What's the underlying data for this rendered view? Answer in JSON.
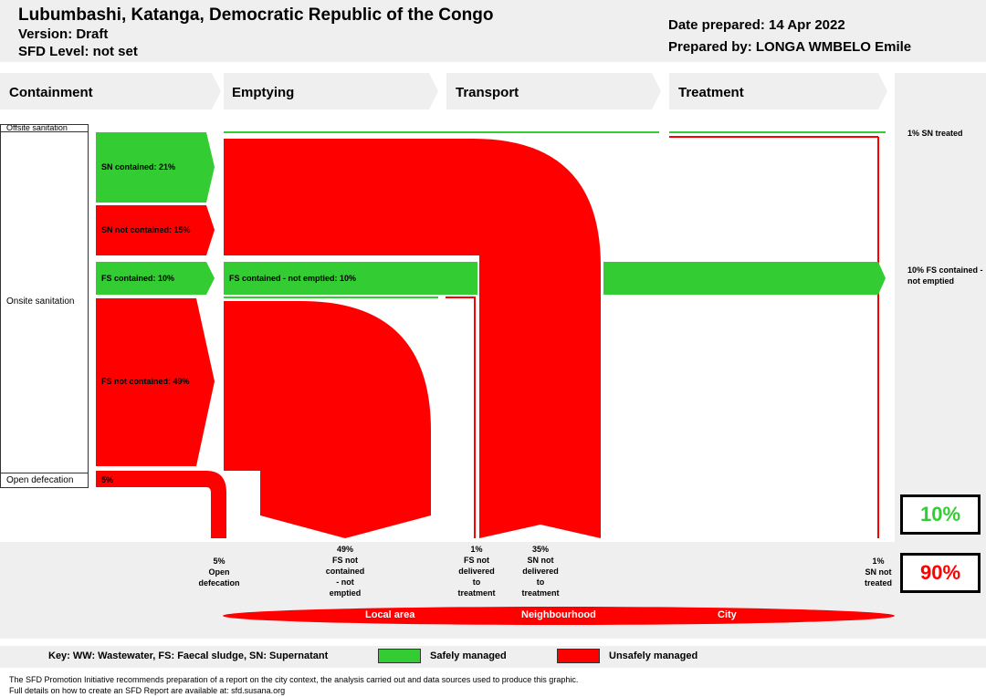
{
  "header": {
    "title": "Lubumbashi, Katanga, Democratic Republic of the Congo",
    "version": "Version: Draft",
    "sfd_level": "SFD Level: not set",
    "date_prepared": "Date prepared: 14 Apr 2022",
    "prepared_by": "Prepared by: LONGA WMBELO Emile"
  },
  "stages": {
    "containment": "Containment",
    "emptying": "Emptying",
    "transport": "Transport",
    "treatment": "Treatment"
  },
  "side_labels": {
    "offsite": "Offsite sanitation",
    "onsite": "Onsite sanitation",
    "open_defecation": "Open defecation"
  },
  "flows": {
    "sn_contained": "SN contained: 21%",
    "sn_not_contained": "SN not contained: 15%",
    "fs_contained": "FS contained: 10%",
    "fs_not_contained": "FS not contained: 49%",
    "open_def": "5%",
    "fs_contained_not_emptied": "FS contained - not emptied: 10%"
  },
  "right_labels": {
    "sn_treated": "1% SN treated",
    "fs_contained_not_emptied": "10% FS contained - not emptied"
  },
  "bottom_labels": {
    "open_defecation": [
      "5%",
      "Open",
      "defecation"
    ],
    "fs_not_contained": [
      "49%",
      "FS not",
      "contained",
      "- not",
      "emptied"
    ],
    "fs_not_delivered": [
      "1%",
      "FS not",
      "delivered",
      "to",
      "treatment"
    ],
    "sn_not_delivered": [
      "35%",
      "SN not",
      "delivered",
      "to",
      "treatment"
    ],
    "sn_not_treated": [
      "1%",
      "SN not",
      "treated"
    ]
  },
  "scale": {
    "local_area": "Local area",
    "neighbourhood": "Neighbourhood",
    "city": "City"
  },
  "totals": {
    "safely_managed": "10%",
    "unsafely_managed": "90%"
  },
  "key": {
    "abbreviations": "Key: WW: Wastewater, FS: Faecal sludge, SN: Supernatant",
    "safe": "Safely managed",
    "unsafe": "Unsafely managed"
  },
  "footer": {
    "line1": "The SFD Promotion Initiative recommends preparation of a report on the city context, the analysis carried out and data sources used to produce this graphic.",
    "line2": "Full details on how to create an SFD Report are available at: sfd.susana.org"
  },
  "colors": {
    "safe": "#33cc33",
    "unsafe": "#ff0000",
    "panel": "#efefef"
  }
}
